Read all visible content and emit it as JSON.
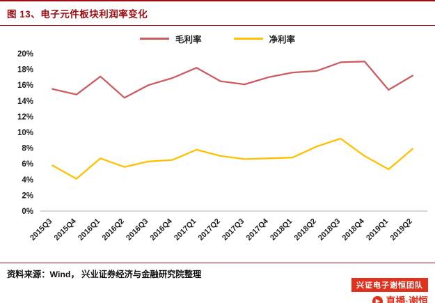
{
  "header": {
    "title": "图 13、电子元件板块利润率变化"
  },
  "footer": {
    "source_label": "资料来源：",
    "source_text": "Wind， 兴业证券经济与金融研究院整理"
  },
  "watermark": {
    "badge": "兴证电子谢恒团队",
    "sub": "直播·谢恒"
  },
  "colors": {
    "accent": "#9b0d12",
    "badge": "#e0301e",
    "gross_margin_line": "#cc5b60",
    "net_margin_line": "#ffc000",
    "axis_line": "#b0b0b0"
  },
  "chart_data": {
    "type": "line",
    "title": "电子元件板块利润率变化",
    "xlabel": "",
    "ylabel": "",
    "categories": [
      "2015Q3",
      "2015Q4",
      "2016Q1",
      "2016Q2",
      "2016Q3",
      "2016Q4",
      "2017Q1",
      "2017Q2",
      "2017Q3",
      "2017Q4",
      "2018Q1",
      "2018Q2",
      "2018Q3",
      "2018Q4",
      "2019Q1",
      "2019Q2"
    ],
    "series": [
      {
        "name": "毛利率",
        "color": "#cc5b60",
        "values": [
          15.5,
          14.8,
          17.1,
          14.4,
          16.0,
          16.9,
          18.2,
          16.5,
          16.1,
          17.0,
          17.6,
          17.8,
          18.9,
          19.0,
          15.4,
          17.2
        ]
      },
      {
        "name": "净利率",
        "color": "#ffc000",
        "values": [
          5.8,
          4.1,
          6.7,
          5.6,
          6.3,
          6.5,
          7.8,
          7.0,
          6.6,
          6.7,
          6.8,
          8.2,
          9.2,
          7.0,
          5.3,
          7.9
        ]
      }
    ],
    "ylim": [
      0,
      20
    ],
    "ytick_step": 2,
    "ytick_suffix": "%",
    "grid": false,
    "legend_position": "top"
  }
}
